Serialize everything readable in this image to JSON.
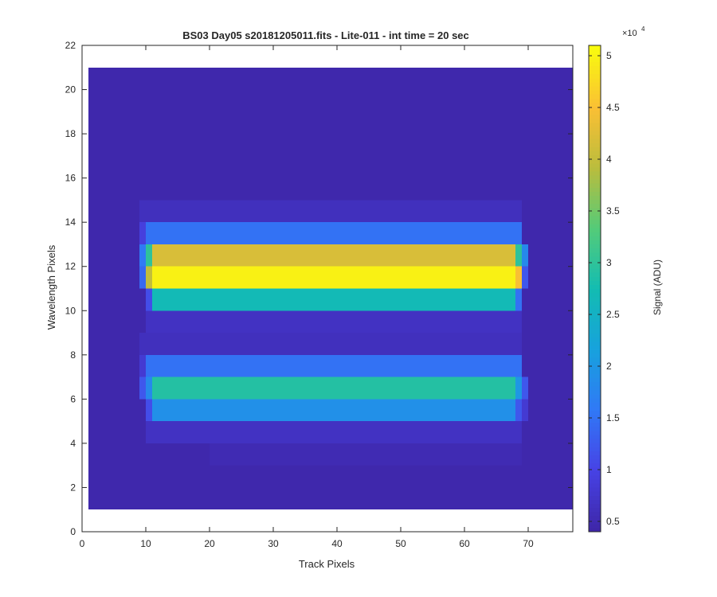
{
  "chart_data": {
    "type": "heatmap",
    "title": "BS03 Day05  s20181205011.fits - Lite-011 - int time = 20 sec",
    "xlabel": "Track Pixels",
    "ylabel": "Wavelength Pixels",
    "xlim": [
      0,
      77
    ],
    "ylim": [
      0,
      22
    ],
    "x_ticks": [
      0,
      10,
      20,
      30,
      40,
      50,
      60,
      70
    ],
    "y_ticks": [
      0,
      2,
      4,
      6,
      8,
      10,
      12,
      14,
      16,
      18,
      20,
      22
    ],
    "grid": false,
    "image_extent": {
      "x": [
        1,
        77
      ],
      "y": [
        1,
        21
      ]
    },
    "background_value": 4400,
    "bands": [
      {
        "y": [
          13,
          14
        ],
        "x": [
          10,
          69
        ],
        "value": 15000
      },
      {
        "y": [
          12,
          13
        ],
        "x": [
          11,
          69
        ],
        "value": 42000
      },
      {
        "y": [
          11,
          12
        ],
        "x": [
          11,
          69
        ],
        "value": 50000
      },
      {
        "y": [
          10,
          11
        ],
        "x": [
          11,
          69
        ],
        "value": 27000
      },
      {
        "y": [
          7,
          8
        ],
        "x": [
          10,
          69
        ],
        "value": 15000
      },
      {
        "y": [
          6,
          7
        ],
        "x": [
          11,
          69
        ],
        "value": 29000
      },
      {
        "y": [
          5,
          6
        ],
        "x": [
          11,
          69
        ],
        "value": 19000
      }
    ],
    "band_edges": [
      {
        "y": [
          13,
          14
        ],
        "x": [
          9,
          10
        ],
        "value": 9000
      },
      {
        "y": [
          12,
          13
        ],
        "x": [
          9,
          10
        ],
        "value": 16000
      },
      {
        "y": [
          12,
          13
        ],
        "x": [
          10,
          11
        ],
        "value": 30000
      },
      {
        "y": [
          12,
          13
        ],
        "x": [
          68,
          69
        ],
        "value": 30000
      },
      {
        "y": [
          12,
          13
        ],
        "x": [
          69,
          70
        ],
        "value": 18000
      },
      {
        "y": [
          11,
          12
        ],
        "x": [
          9,
          10
        ],
        "value": 14000
      },
      {
        "y": [
          11,
          12
        ],
        "x": [
          10,
          11
        ],
        "value": 40000
      },
      {
        "y": [
          11,
          12
        ],
        "x": [
          68,
          69
        ],
        "value": 45000
      },
      {
        "y": [
          11,
          12
        ],
        "x": [
          69,
          70
        ],
        "value": 12000
      },
      {
        "y": [
          10,
          11
        ],
        "x": [
          10,
          11
        ],
        "value": 11000
      },
      {
        "y": [
          10,
          11
        ],
        "x": [
          68,
          69
        ],
        "value": 15000
      },
      {
        "y": [
          7,
          8
        ],
        "x": [
          9,
          10
        ],
        "value": 8000
      },
      {
        "y": [
          6,
          7
        ],
        "x": [
          9,
          10
        ],
        "value": 12000
      },
      {
        "y": [
          6,
          7
        ],
        "x": [
          10,
          11
        ],
        "value": 18000
      },
      {
        "y": [
          6,
          7
        ],
        "x": [
          68,
          69
        ],
        "value": 20000
      },
      {
        "y": [
          6,
          7
        ],
        "x": [
          69,
          70
        ],
        "value": 12000
      },
      {
        "y": [
          5,
          6
        ],
        "x": [
          10,
          11
        ],
        "value": 11000
      },
      {
        "y": [
          5,
          6
        ],
        "x": [
          68,
          69
        ],
        "value": 12000
      },
      {
        "y": [
          5,
          6
        ],
        "x": [
          69,
          70
        ],
        "value": 8000
      }
    ],
    "faint_regions": [
      {
        "y": [
          14,
          15
        ],
        "x": [
          9,
          69
        ],
        "value": 6000
      },
      {
        "y": [
          9,
          10
        ],
        "x": [
          10,
          69
        ],
        "value": 6500
      },
      {
        "y": [
          8,
          9
        ],
        "x": [
          9,
          69
        ],
        "value": 6000
      },
      {
        "y": [
          4,
          5
        ],
        "x": [
          10,
          69
        ],
        "value": 6500
      },
      {
        "y": [
          3,
          4
        ],
        "x": [
          20,
          69
        ],
        "value": 5000
      }
    ],
    "colorbar": {
      "label": "Signal (ADU)",
      "exponent_label": "×10",
      "exponent": "4",
      "range": [
        4000,
        51000
      ],
      "tick_values": [
        0.5,
        1,
        1.5,
        2,
        2.5,
        3,
        3.5,
        4,
        4.5,
        5
      ],
      "tick_labels": [
        "0.5",
        "1",
        "1.5",
        "2",
        "2.5",
        "3",
        "3.5",
        "4",
        "4.5",
        "5"
      ],
      "colormap": "parula"
    }
  }
}
